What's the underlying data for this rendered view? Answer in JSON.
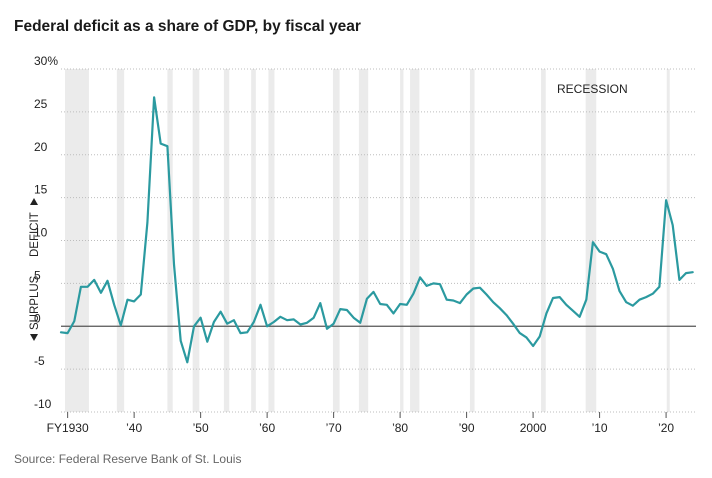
{
  "title": "Federal deficit as a share of GDP, by fiscal year",
  "source": "Source: Federal Reserve Bank of St. Louis",
  "chart_data": {
    "type": "line",
    "title": "Federal deficit as a share of GDP, by fiscal year",
    "xlabel": "",
    "ylabel": "",
    "xlim": [
      1929,
      2024.5
    ],
    "ylim": [
      -10,
      30
    ],
    "grid": true,
    "yticks": [
      30,
      25,
      20,
      15,
      10,
      5,
      0,
      -5,
      -10
    ],
    "ytick_labels": [
      "30%",
      "25",
      "20",
      "15",
      "10",
      "5",
      "0",
      "-5",
      "-10"
    ],
    "xticks": [
      1930,
      1940,
      1950,
      1960,
      1970,
      1980,
      1990,
      2000,
      2010,
      2020
    ],
    "xtick_labels": [
      "FY1930",
      "’40",
      "’50",
      "’60",
      "’70",
      "’80",
      "’90",
      "2000",
      "’10",
      "’20"
    ],
    "deficit_label": "DEFICIT",
    "surplus_label": "SURPLUS",
    "recession_label": "RECESSION",
    "line_color": "#2b9aa0",
    "recessions": [
      [
        1929.6,
        1933.2
      ],
      [
        1937.4,
        1938.5
      ],
      [
        1945.0,
        1945.8
      ],
      [
        1948.8,
        1949.8
      ],
      [
        1953.5,
        1954.3
      ],
      [
        1957.6,
        1958.3
      ],
      [
        1960.2,
        1961.1
      ],
      [
        1969.9,
        1970.9
      ],
      [
        1973.8,
        1975.2
      ],
      [
        1980.0,
        1980.5
      ],
      [
        1981.5,
        1982.9
      ],
      [
        1990.5,
        1991.2
      ],
      [
        2001.2,
        2001.9
      ],
      [
        2007.9,
        2009.5
      ],
      [
        2020.1,
        2020.5
      ]
    ],
    "series": [
      {
        "x": [
          1929,
          1930,
          1931,
          1932,
          1933,
          1934,
          1935,
          1936,
          1937,
          1938,
          1939,
          1940,
          1941,
          1942,
          1943,
          1944,
          1945,
          1946,
          1947,
          1948,
          1949,
          1950,
          1951,
          1952,
          1953,
          1954,
          1955,
          1956,
          1957,
          1958,
          1959,
          1960,
          1961,
          1962,
          1963,
          1964,
          1965,
          1966,
          1967,
          1968,
          1969,
          1970,
          1971,
          1972,
          1973,
          1974,
          1975,
          1976,
          1977,
          1978,
          1979,
          1980,
          1981,
          1982,
          1983,
          1984,
          1985,
          1986,
          1987,
          1988,
          1989,
          1990,
          1991,
          1992,
          1993,
          1994,
          1995,
          1996,
          1997,
          1998,
          1999,
          2000,
          2001,
          2002,
          2003,
          2004,
          2005,
          2006,
          2007,
          2008,
          2009,
          2010,
          2011,
          2012,
          2013,
          2014,
          2015,
          2016,
          2017,
          2018,
          2019,
          2020,
          2021,
          2022,
          2023,
          2024
        ],
        "values": [
          -0.7,
          -0.8,
          0.6,
          4.6,
          4.6,
          5.4,
          3.9,
          5.3,
          2.5,
          0.1,
          3.1,
          2.9,
          3.7,
          12.1,
          26.7,
          21.3,
          21.0,
          7.2,
          -1.7,
          -4.2,
          0.0,
          1.0,
          -1.8,
          0.5,
          1.7,
          0.3,
          0.7,
          -0.8,
          -0.7,
          0.5,
          2.5,
          0.0,
          0.5,
          1.1,
          0.7,
          0.8,
          0.2,
          0.4,
          1.0,
          2.7,
          -0.3,
          0.3,
          2.0,
          1.9,
          1.0,
          0.4,
          3.2,
          4.0,
          2.6,
          2.5,
          1.5,
          2.6,
          2.5,
          3.8,
          5.7,
          4.7,
          5.0,
          4.9,
          3.1,
          3.0,
          2.7,
          3.7,
          4.4,
          4.5,
          3.7,
          2.8,
          2.1,
          1.3,
          0.3,
          -0.8,
          -1.3,
          -2.3,
          -1.2,
          1.5,
          3.3,
          3.4,
          2.5,
          1.8,
          1.1,
          3.1,
          9.8,
          8.7,
          8.4,
          6.7,
          4.1,
          2.8,
          2.4,
          3.1,
          3.4,
          3.8,
          4.6,
          14.7,
          11.8,
          5.4,
          6.2,
          6.3
        ]
      }
    ]
  }
}
